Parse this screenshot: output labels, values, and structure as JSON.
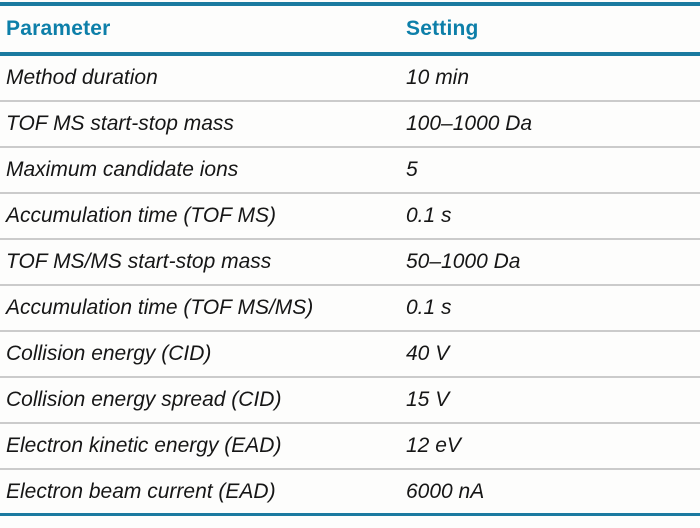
{
  "table": {
    "columns": [
      {
        "key": "parameter",
        "label": "Parameter"
      },
      {
        "key": "setting",
        "label": "Setting"
      }
    ],
    "rows": [
      {
        "parameter": "Method duration",
        "setting": "10 min"
      },
      {
        "parameter": "TOF MS start-stop mass",
        "setting": "100–1000 Da"
      },
      {
        "parameter": "Maximum candidate ions",
        "setting": "5"
      },
      {
        "parameter": "Accumulation time (TOF MS)",
        "setting": "0.1 s"
      },
      {
        "parameter": "TOF MS/MS start-stop mass",
        "setting": "50–1000 Da"
      },
      {
        "parameter": "Accumulation time (TOF MS/MS)",
        "setting": "0.1 s"
      },
      {
        "parameter": "Collision energy (CID)",
        "setting": "40 V"
      },
      {
        "parameter": "Collision energy spread (CID)",
        "setting": "15 V"
      },
      {
        "parameter": "Electron kinetic energy (EAD)",
        "setting": "12 eV"
      },
      {
        "parameter": "Electron beam current (EAD)",
        "setting": "6000 nA"
      }
    ]
  },
  "colors": {
    "accent_teal": "#1b7aa0",
    "header_text": "#0d7fa9",
    "row_divider": "#cbcbcb",
    "body_text": "#161616"
  }
}
